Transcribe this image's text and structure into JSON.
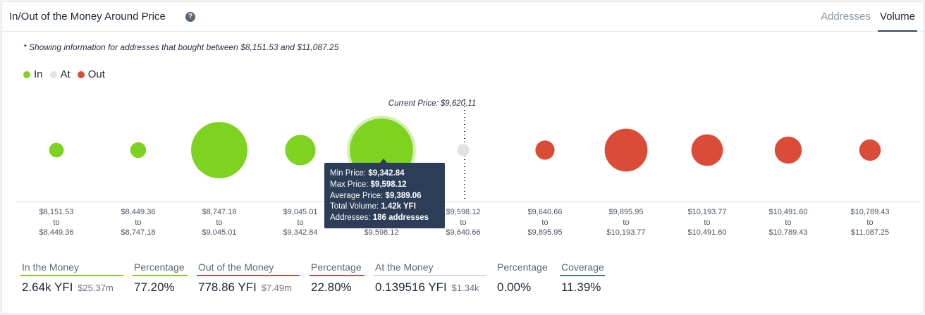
{
  "header": {
    "title": "In/Out of the Money Around Price",
    "tabs": [
      {
        "label": "Addresses",
        "active": false
      },
      {
        "label": "Volume",
        "active": true
      }
    ]
  },
  "note": "* Showing information for addresses that bought between $8,151.53 and $11,087.25",
  "legend": [
    {
      "label": "In",
      "color": "#7ed321"
    },
    {
      "label": "At",
      "color": "#e3e3e3"
    },
    {
      "label": "Out",
      "color": "#db4c38"
    }
  ],
  "current_price_label": "Current Price: $9,620.11",
  "chart_data": {
    "type": "scatter",
    "encoding": "bubble size = volume",
    "buckets": [
      {
        "from": "$8,151.53",
        "to": "$8,449.36",
        "status": "in",
        "relative_size": 0.13
      },
      {
        "from": "$8,449.36",
        "to": "$8,747.18",
        "status": "in",
        "relative_size": 0.14
      },
      {
        "from": "$8,747.18",
        "to": "$9,045.01",
        "status": "in",
        "relative_size": 0.5
      },
      {
        "from": "$9,045.01",
        "to": "$9,342.84",
        "status": "in",
        "relative_size": 0.27
      },
      {
        "from": "$9,342.84",
        "to": "$9,598.12",
        "status": "in",
        "relative_size": 0.56,
        "highlighted": true
      },
      {
        "from": "$9,598.12",
        "to": "$9,640.66",
        "status": "at",
        "relative_size": 0.11
      },
      {
        "from": "$9,640.66",
        "to": "$9,895.95",
        "status": "out",
        "relative_size": 0.17
      },
      {
        "from": "$9,895.95",
        "to": "$10,193.77",
        "status": "out",
        "relative_size": 0.38
      },
      {
        "from": "$10,193.77",
        "to": "$10,491.60",
        "status": "out",
        "relative_size": 0.28
      },
      {
        "from": "$10,491.60",
        "to": "$10,789.43",
        "status": "out",
        "relative_size": 0.24
      },
      {
        "from": "$10,789.43",
        "to": "$11,087.25",
        "status": "out",
        "relative_size": 0.19
      }
    ],
    "tick_connector": "to"
  },
  "tooltip": {
    "rows": [
      {
        "label": "Min Price:",
        "value": "$9,342.84"
      },
      {
        "label": "Max Price:",
        "value": "$9,598.12"
      },
      {
        "label": "Average Price:",
        "value": "$9,389.06"
      },
      {
        "label": "Total Volume:",
        "value": "1.42k YFI"
      },
      {
        "label": "Addresses:",
        "value": "186 addresses"
      }
    ]
  },
  "stats": [
    {
      "label": "In the Money",
      "value": "2.64k YFI",
      "sub": "$25.37m",
      "color": "#7ed321"
    },
    {
      "label": "Percentage",
      "value": "77.20%",
      "sub": "",
      "color": "#7ed321"
    },
    {
      "label": "Out of the Money",
      "value": "778.86 YFI",
      "sub": "$7.49m",
      "color": "#c7533f"
    },
    {
      "label": "Percentage",
      "value": "22.80%",
      "sub": "",
      "color": "#c7533f"
    },
    {
      "label": "At the Money",
      "value": "0.139516 YFI",
      "sub": "$1.34k",
      "color": "#d9d9d9"
    },
    {
      "label": "Percentage",
      "value": "0.00%",
      "sub": "",
      "color": "#ffffff"
    },
    {
      "label": "Coverage",
      "value": "11.39%",
      "sub": "",
      "color": "#4a6fa8"
    }
  ],
  "colors": {
    "in": "#7ed321",
    "at": "#e3e3e3",
    "out": "#db4c38",
    "tooltip_bg": "#2c3e57"
  }
}
